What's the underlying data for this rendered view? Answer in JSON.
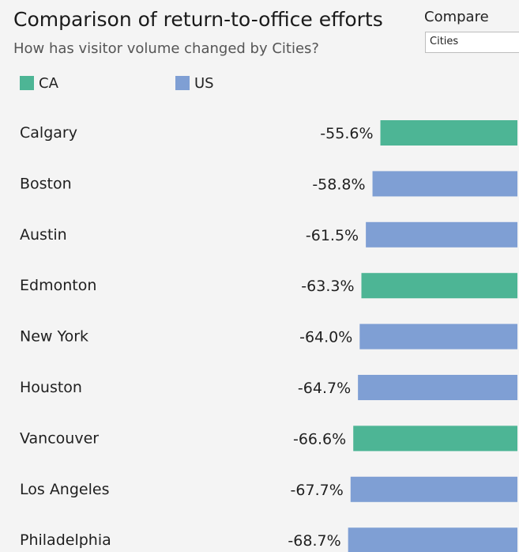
{
  "header": {
    "title": "Comparison of return-to-office efforts",
    "subtitle": "How has visitor volume changed by Cities?"
  },
  "compare": {
    "label": "Compare",
    "selected": "Cities"
  },
  "colors": {
    "CA": "#4db595",
    "US": "#7f9fd4"
  },
  "chart_data": {
    "type": "bar",
    "orientation": "horizontal",
    "legend": [
      {
        "name": "CA",
        "color": "#4db595"
      },
      {
        "name": "US",
        "color": "#7f9fd4"
      }
    ],
    "categories": [
      "Calgary",
      "Boston",
      "Austin",
      "Edmonton",
      "New York",
      "Houston",
      "Vancouver",
      "Los Angeles",
      "Philadelphia"
    ],
    "values": [
      -55.6,
      -58.8,
      -61.5,
      -63.3,
      -64.0,
      -64.7,
      -66.6,
      -67.7,
      -68.7
    ],
    "value_labels": [
      "-55.6%",
      "-58.8%",
      "-61.5%",
      "-63.3%",
      "-64.0%",
      "-64.7%",
      "-66.6%",
      "-67.7%",
      "-68.7%"
    ],
    "groups": [
      "CA",
      "US",
      "US",
      "CA",
      "US",
      "US",
      "CA",
      "US",
      "US"
    ],
    "unit": "%",
    "legend_position": "top-left",
    "grid": false
  }
}
